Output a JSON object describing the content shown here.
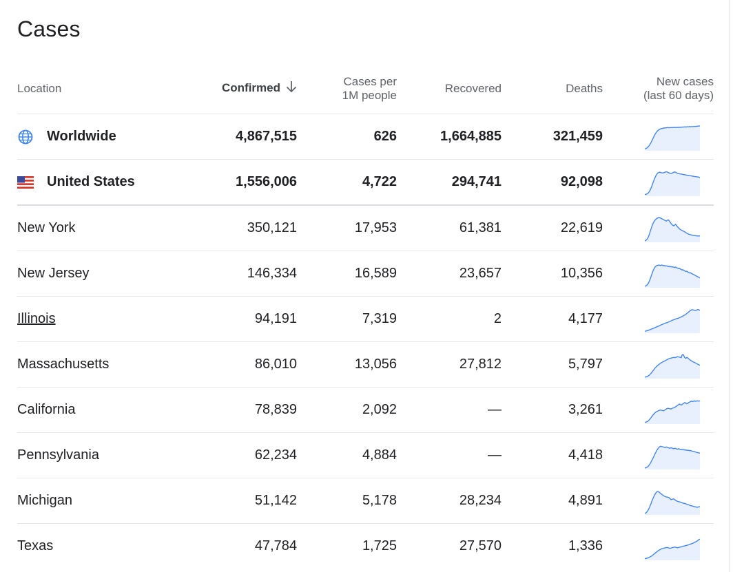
{
  "title": "Cases",
  "columns": {
    "location": "Location",
    "confirmed": "Confirmed",
    "cases_per_1m_line1": "Cases per",
    "cases_per_1m_line2": "1M people",
    "recovered": "Recovered",
    "deaths": "Deaths",
    "new_cases_line1": "New cases",
    "new_cases_line2": "(last 60 days)"
  },
  "icons": {
    "worldwide": "globe-icon",
    "united_states": "us-flag-icon",
    "sort": "arrow-down-icon"
  },
  "colors": {
    "sparkline_stroke": "#4285f4",
    "sparkline_fill": "#e8f0fe",
    "globe": "#4285f4"
  },
  "rows": [
    {
      "location": "Worldwide",
      "confirmed": "4,867,515",
      "cases_per_1m": "626",
      "recovered": "1,664,885",
      "deaths": "321,459",
      "spark": [
        2,
        3,
        5,
        8,
        12,
        17,
        23,
        30,
        38,
        46,
        54,
        61,
        67,
        72,
        76,
        79,
        81,
        83,
        84,
        85,
        86,
        86,
        87,
        87,
        88,
        88,
        87,
        88,
        88,
        88,
        88,
        89,
        88,
        89,
        88,
        89,
        89,
        89,
        90,
        89,
        90,
        90,
        90,
        91,
        90,
        91,
        91,
        91,
        92,
        91,
        92,
        92,
        92,
        93,
        92,
        93,
        93,
        94,
        94,
        95
      ]
    },
    {
      "location": "United States",
      "confirmed": "1,556,006",
      "cases_per_1m": "4,722",
      "recovered": "294,741",
      "deaths": "92,098",
      "spark": [
        1,
        2,
        3,
        5,
        9,
        14,
        21,
        30,
        40,
        51,
        61,
        70,
        78,
        84,
        88,
        90,
        91,
        90,
        89,
        88,
        89,
        90,
        92,
        93,
        92,
        90,
        88,
        87,
        86,
        87,
        89,
        91,
        92,
        91,
        89,
        87,
        86,
        85,
        84,
        84,
        83,
        82,
        81,
        81,
        80,
        79,
        79,
        78,
        77,
        77,
        76,
        75,
        75,
        74,
        73,
        73,
        72,
        72,
        71,
        70
      ]
    },
    {
      "location": "New York",
      "confirmed": "350,121",
      "cases_per_1m": "17,953",
      "recovered": "61,381",
      "deaths": "22,619",
      "spark": [
        0,
        2,
        5,
        10,
        18,
        28,
        40,
        52,
        63,
        72,
        79,
        84,
        88,
        91,
        93,
        95,
        94,
        92,
        90,
        88,
        86,
        84,
        82,
        80,
        83,
        85,
        82,
        76,
        71,
        66,
        63,
        61,
        64,
        67,
        62,
        57,
        53,
        49,
        46,
        44,
        42,
        40,
        38,
        36,
        33,
        31,
        29,
        27,
        26,
        25,
        24,
        23,
        22,
        22,
        21,
        21,
        20,
        20,
        20,
        20
      ]
    },
    {
      "location": "New Jersey",
      "confirmed": "146,334",
      "cases_per_1m": "16,589",
      "recovered": "23,657",
      "deaths": "10,356",
      "spark": [
        0,
        2,
        4,
        8,
        14,
        22,
        32,
        43,
        54,
        64,
        72,
        78,
        82,
        84,
        85,
        86,
        85,
        84,
        86,
        85,
        83,
        84,
        82,
        83,
        82,
        80,
        81,
        79,
        80,
        78,
        79,
        77,
        76,
        78,
        75,
        74,
        72,
        73,
        70,
        68,
        66,
        67,
        64,
        62,
        60,
        61,
        58,
        56,
        54,
        55,
        52,
        50,
        48,
        46,
        44,
        42,
        40,
        38,
        36,
        34
      ]
    },
    {
      "location": "Illinois",
      "confirmed": "94,191",
      "cases_per_1m": "7,319",
      "recovered": "2",
      "deaths": "4,177",
      "link": true,
      "spark": [
        2,
        3,
        4,
        5,
        6,
        8,
        9,
        11,
        12,
        14,
        15,
        17,
        19,
        20,
        22,
        23,
        25,
        27,
        29,
        30,
        32,
        33,
        35,
        36,
        37,
        39,
        40,
        42,
        44,
        46,
        47,
        49,
        50,
        51,
        53,
        54,
        55,
        57,
        58,
        60,
        62,
        64,
        66,
        68,
        71,
        74,
        77,
        80,
        83,
        86,
        88,
        89,
        88,
        87,
        86,
        87,
        89,
        90,
        88,
        87
      ]
    },
    {
      "location": "Massachusetts",
      "confirmed": "86,010",
      "cases_per_1m": "13,056",
      "recovered": "27,812",
      "deaths": "5,797",
      "spark": [
        0,
        1,
        2,
        4,
        6,
        9,
        13,
        17,
        22,
        27,
        32,
        37,
        41,
        45,
        48,
        51,
        54,
        57,
        59,
        61,
        63,
        65,
        67,
        69,
        71,
        73,
        75,
        76,
        77,
        78,
        79,
        80,
        79,
        80,
        81,
        83,
        82,
        81,
        80,
        79,
        90,
        92,
        85,
        78,
        76,
        80,
        78,
        74,
        71,
        68,
        66,
        63,
        61,
        60,
        58,
        56,
        54,
        52,
        50,
        48
      ]
    },
    {
      "location": "California",
      "confirmed": "78,839",
      "cases_per_1m": "2,092",
      "recovered": "—",
      "deaths": "3,261",
      "spark": [
        1,
        2,
        3,
        5,
        8,
        12,
        17,
        22,
        27,
        32,
        36,
        40,
        43,
        45,
        47,
        49,
        50,
        51,
        50,
        49,
        48,
        50,
        52,
        55,
        57,
        58,
        57,
        56,
        55,
        57,
        59,
        60,
        62,
        64,
        67,
        70,
        72,
        75,
        73,
        71,
        73,
        76,
        79,
        81,
        78,
        76,
        78,
        81,
        83,
        85,
        87,
        85,
        86,
        88,
        86,
        87,
        88,
        87,
        88,
        87
      ]
    },
    {
      "location": "Pennsylvania",
      "confirmed": "62,234",
      "cases_per_1m": "4,884",
      "recovered": "—",
      "deaths": "4,418",
      "spark": [
        0,
        1,
        3,
        5,
        9,
        14,
        20,
        27,
        34,
        42,
        50,
        58,
        65,
        72,
        78,
        83,
        86,
        88,
        87,
        86,
        85,
        84,
        83,
        85,
        84,
        82,
        81,
        80,
        82,
        81,
        79,
        78,
        80,
        79,
        77,
        76,
        78,
        77,
        75,
        74,
        76,
        75,
        73,
        74,
        72,
        73,
        71,
        72,
        70,
        71,
        69,
        68,
        67,
        66,
        65,
        64,
        63,
        62,
        61,
        60
      ]
    },
    {
      "location": "Michigan",
      "confirmed": "51,142",
      "cases_per_1m": "5,178",
      "recovered": "28,234",
      "deaths": "4,891",
      "spark": [
        0,
        2,
        5,
        10,
        17,
        25,
        34,
        44,
        54,
        63,
        71,
        78,
        84,
        88,
        89,
        87,
        84,
        81,
        78,
        75,
        72,
        70,
        68,
        67,
        66,
        65,
        64,
        60,
        56,
        57,
        58,
        59,
        56,
        53,
        51,
        49,
        48,
        47,
        46,
        45,
        43,
        42,
        41,
        40,
        39,
        37,
        36,
        35,
        33,
        32,
        31,
        30,
        29,
        28,
        27,
        26,
        25,
        26,
        27,
        28
      ]
    },
    {
      "location": "Texas",
      "confirmed": "47,784",
      "cases_per_1m": "1,725",
      "recovered": "27,570",
      "deaths": "1,336",
      "spark": [
        1,
        2,
        3,
        4,
        5,
        7,
        9,
        11,
        14,
        17,
        20,
        23,
        26,
        29,
        32,
        35,
        37,
        39,
        41,
        42,
        43,
        44,
        45,
        46,
        46,
        45,
        44,
        43,
        44,
        45,
        46,
        47,
        48,
        47,
        46,
        45,
        46,
        47,
        48,
        49,
        50,
        51,
        52,
        53,
        54,
        55,
        56,
        57,
        58,
        60,
        61,
        63,
        64,
        66,
        68,
        70,
        72,
        75,
        78,
        80
      ]
    }
  ]
}
